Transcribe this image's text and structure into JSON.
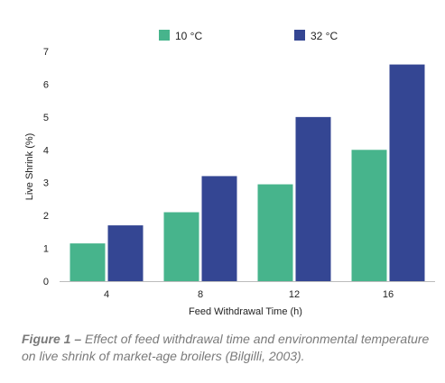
{
  "chart_data": {
    "type": "bar",
    "categories": [
      "4",
      "8",
      "12",
      "16"
    ],
    "series": [
      {
        "name": "10 °C",
        "values": [
          1.15,
          2.1,
          2.95,
          4.0
        ],
        "color": "#47b48c"
      },
      {
        "name": "32 °C",
        "values": [
          1.7,
          3.2,
          5.0,
          6.6
        ],
        "color": "#344693"
      }
    ],
    "xlabel": "Feed Withdrawal Time (h)",
    "ylabel": "Live Shrink (%)",
    "ylim": [
      0,
      7
    ],
    "yticks": [
      0,
      1,
      2,
      3,
      4,
      5,
      6,
      7
    ],
    "grid": false,
    "legend_position": "top-center"
  },
  "caption": {
    "lead": "Figure 1 – ",
    "text": "Effect of feed withdrawal time and environmental temperature on live shrink of market-age broilers (Bilgilli, 2003)."
  }
}
